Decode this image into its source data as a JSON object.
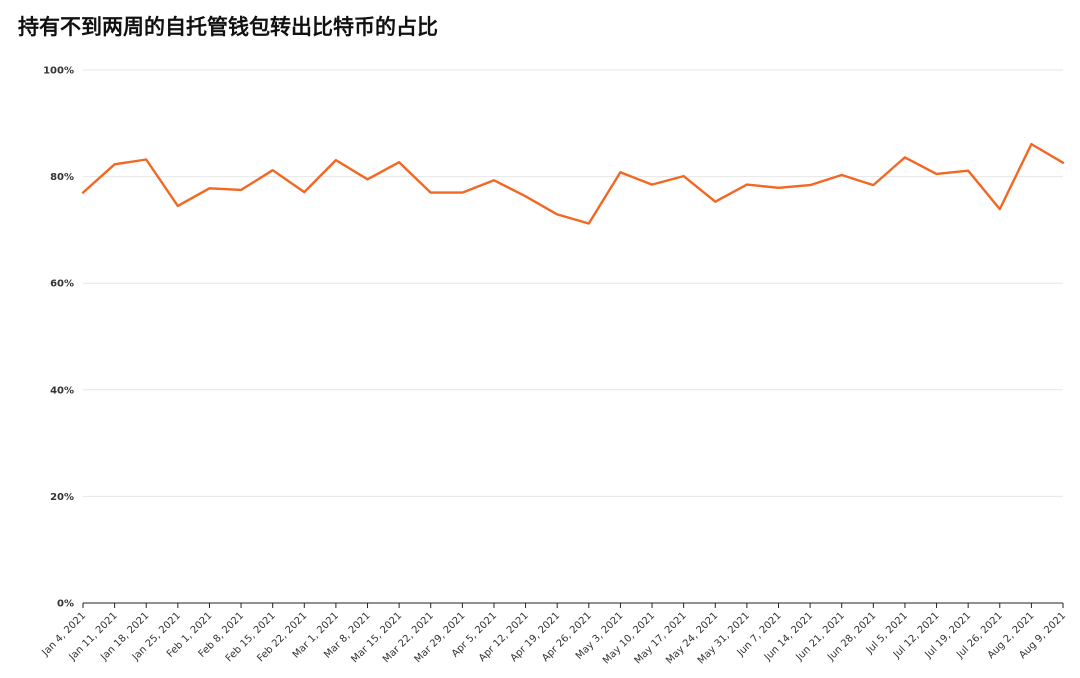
{
  "chart_data": {
    "type": "line",
    "title": "持有不到两周的自托管钱包转出比特币的占比",
    "xlabel": "",
    "ylabel": "",
    "ylim": [
      0,
      100
    ],
    "yticks": [
      "0%",
      "20%",
      "40%",
      "60%",
      "80%",
      "100%"
    ],
    "ytick_values": [
      0,
      20,
      40,
      60,
      80,
      100
    ],
    "grid": true,
    "line_color": "#f26722",
    "grid_color": "#e6e6e6",
    "categories": [
      "Jan 4, 2021",
      "Jan 11, 2021",
      "Jan 18, 2021",
      "Jan 25, 2021",
      "Feb 1, 2021",
      "Feb 8, 2021",
      "Feb 15, 2021",
      "Feb 22, 2021",
      "Mar 1, 2021",
      "Mar 8, 2021",
      "Mar 15, 2021",
      "Mar 22, 2021",
      "Mar 29, 2021",
      "Apr 5, 2021",
      "Apr 12, 2021",
      "Apr 19, 2021",
      "Apr 26, 2021",
      "May 3, 2021",
      "May 10, 2021",
      "May 17, 2021",
      "May 24, 2021",
      "May 31, 2021",
      "Jun 7, 2021",
      "Jun 14, 2021",
      "Jun 21, 2021",
      "Jun 28, 2021",
      "Jul 5, 2021",
      "Jul 12, 2021",
      "Jul 19, 2021",
      "Jul 26, 2021",
      "Aug 2, 2021",
      "Aug 9, 2021"
    ],
    "values": [
      77.0,
      82.3,
      83.2,
      74.5,
      77.8,
      77.5,
      81.2,
      77.1,
      83.1,
      79.5,
      82.7,
      77.0,
      77.0,
      79.3,
      76.3,
      72.9,
      71.2,
      80.8,
      78.5,
      80.1,
      75.3,
      78.5,
      77.9,
      78.4,
      80.3,
      78.4,
      83.6,
      80.5,
      81.1,
      73.9,
      86.1,
      82.6
    ]
  }
}
